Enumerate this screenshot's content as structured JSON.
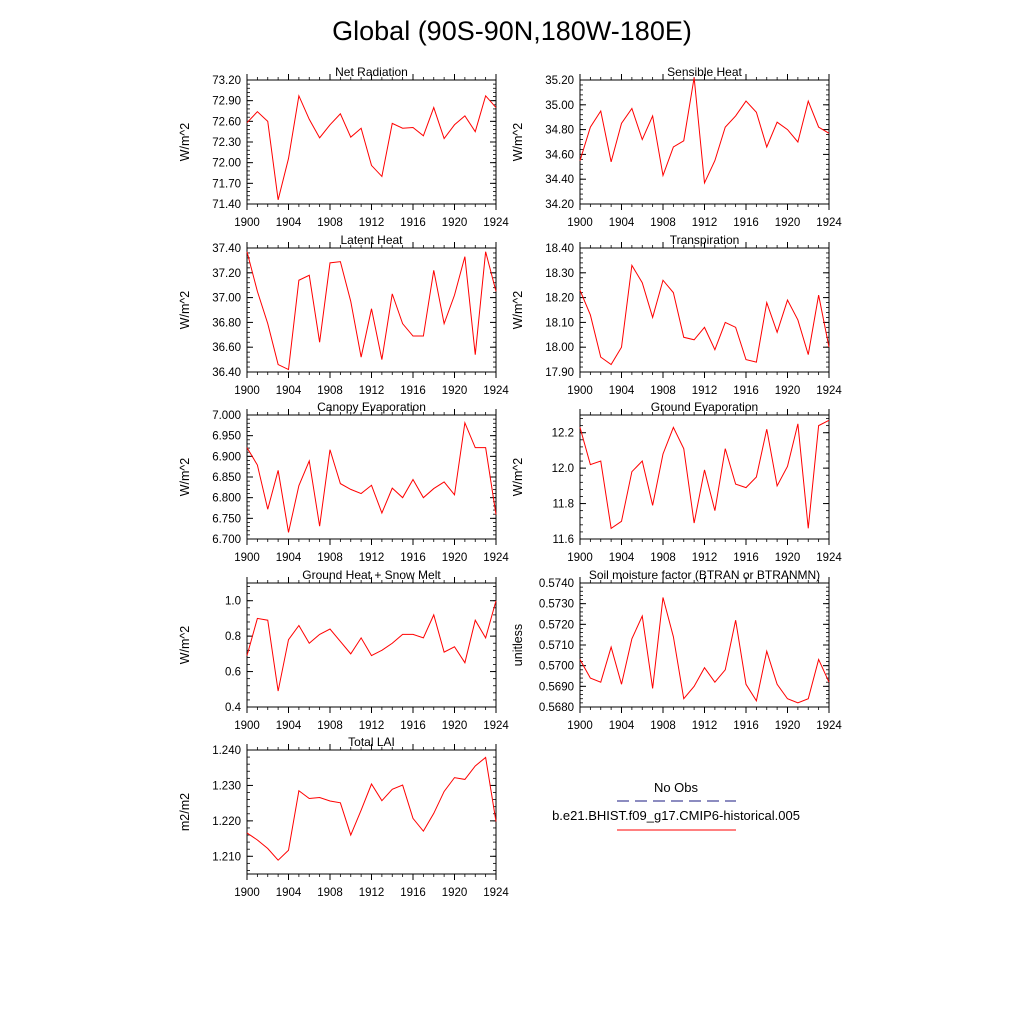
{
  "figure_title": "Global (90S-90N,180W-180E)",
  "colors": {
    "model": "#ff0000",
    "obs": "#1a1a80",
    "axes": "#000000"
  },
  "legend": {
    "entries": [
      {
        "label": "No Obs",
        "color": "#1a1a80",
        "style": "dashed"
      },
      {
        "label": "b.e21.BHIST.f09_g17.CMIP6-historical.005",
        "color": "#ff0000",
        "style": "solid"
      }
    ]
  },
  "chart_data": [
    {
      "type": "line",
      "title": "Net Radiation",
      "ylabel": "W/m^2",
      "xlabel": "",
      "xlim": [
        1900,
        1924
      ],
      "ylim": [
        71.4,
        73.2
      ],
      "xticks": [
        "1900",
        "1904",
        "1908",
        "1912",
        "1916",
        "1920",
        "1924"
      ],
      "yticks": [
        "71.40",
        "71.70",
        "72.00",
        "72.30",
        "72.60",
        "72.90",
        "73.20"
      ],
      "x": [
        1900,
        1901,
        1902,
        1903,
        1904,
        1905,
        1906,
        1907,
        1908,
        1909,
        1910,
        1911,
        1912,
        1913,
        1914,
        1915,
        1916,
        1917,
        1918,
        1919,
        1920,
        1921,
        1922,
        1923,
        1924
      ],
      "series": [
        {
          "values": [
            72.58,
            72.74,
            72.6,
            71.46,
            72.06,
            72.97,
            72.63,
            72.36,
            72.55,
            72.71,
            72.37,
            72.5,
            71.96,
            71.8,
            72.57,
            72.5,
            72.51,
            72.39,
            72.8,
            72.35,
            72.55,
            72.68,
            72.45,
            72.97,
            72.8
          ]
        }
      ]
    },
    {
      "type": "line",
      "title": "Sensible Heat",
      "ylabel": "W/m^2",
      "xlabel": "",
      "xlim": [
        1900,
        1924
      ],
      "ylim": [
        34.2,
        35.2
      ],
      "xticks": [
        "1900",
        "1904",
        "1908",
        "1912",
        "1916",
        "1920",
        "1924"
      ],
      "yticks": [
        "34.20",
        "34.40",
        "34.60",
        "34.80",
        "35.00",
        "35.20"
      ],
      "x": [
        1900,
        1901,
        1902,
        1903,
        1904,
        1905,
        1906,
        1907,
        1908,
        1909,
        1910,
        1911,
        1912,
        1913,
        1914,
        1915,
        1916,
        1917,
        1918,
        1919,
        1920,
        1921,
        1922,
        1923,
        1924
      ],
      "series": [
        {
          "values": [
            34.55,
            34.82,
            34.95,
            34.54,
            34.85,
            34.97,
            34.72,
            34.91,
            34.43,
            34.66,
            34.71,
            35.22,
            34.37,
            34.55,
            34.82,
            34.91,
            35.03,
            34.94,
            34.66,
            34.86,
            34.8,
            34.7,
            35.03,
            34.82,
            34.77
          ]
        }
      ]
    },
    {
      "type": "line",
      "title": "Latent Heat",
      "ylabel": "W/m^2",
      "xlabel": "",
      "xlim": [
        1900,
        1924
      ],
      "ylim": [
        36.4,
        37.4
      ],
      "xticks": [
        "1900",
        "1904",
        "1908",
        "1912",
        "1916",
        "1920",
        "1924"
      ],
      "yticks": [
        "36.40",
        "36.60",
        "36.80",
        "37.00",
        "37.20",
        "37.40"
      ],
      "x": [
        1900,
        1901,
        1902,
        1903,
        1904,
        1905,
        1906,
        1907,
        1908,
        1909,
        1910,
        1911,
        1912,
        1913,
        1914,
        1915,
        1916,
        1917,
        1918,
        1919,
        1920,
        1921,
        1922,
        1923,
        1924
      ],
      "series": [
        {
          "values": [
            37.37,
            37.05,
            36.79,
            36.46,
            36.42,
            37.14,
            37.18,
            36.64,
            37.28,
            37.29,
            36.97,
            36.52,
            36.91,
            36.5,
            37.03,
            36.79,
            36.69,
            36.69,
            37.22,
            36.79,
            37.02,
            37.33,
            36.54,
            37.37,
            37.05
          ]
        }
      ]
    },
    {
      "type": "line",
      "title": "Transpiration",
      "ylabel": "W/m^2",
      "xlabel": "",
      "xlim": [
        1900,
        1924
      ],
      "ylim": [
        17.9,
        18.4
      ],
      "xticks": [
        "1900",
        "1904",
        "1908",
        "1912",
        "1916",
        "1920",
        "1924"
      ],
      "yticks": [
        "17.90",
        "18.00",
        "18.10",
        "18.20",
        "18.30",
        "18.40"
      ],
      "x": [
        1900,
        1901,
        1902,
        1903,
        1904,
        1905,
        1906,
        1907,
        1908,
        1909,
        1910,
        1911,
        1912,
        1913,
        1914,
        1915,
        1916,
        1917,
        1918,
        1919,
        1920,
        1921,
        1922,
        1923,
        1924
      ],
      "series": [
        {
          "values": [
            18.23,
            18.13,
            17.96,
            17.93,
            18.0,
            18.33,
            18.26,
            18.12,
            18.27,
            18.22,
            18.04,
            18.03,
            18.08,
            17.99,
            18.1,
            18.08,
            17.95,
            17.94,
            18.18,
            18.06,
            18.19,
            18.11,
            17.97,
            18.21,
            18.0
          ]
        }
      ]
    },
    {
      "type": "line",
      "title": "Canopy Evaporation",
      "ylabel": "W/m^2",
      "xlabel": "",
      "xlim": [
        1900,
        1924
      ],
      "ylim": [
        6.7,
        7.0
      ],
      "xticks": [
        "1900",
        "1904",
        "1908",
        "1912",
        "1916",
        "1920",
        "1924"
      ],
      "yticks": [
        "6.700",
        "6.750",
        "6.800",
        "6.850",
        "6.900",
        "6.950",
        "7.000"
      ],
      "x": [
        1900,
        1901,
        1902,
        1903,
        1904,
        1905,
        1906,
        1907,
        1908,
        1909,
        1910,
        1911,
        1912,
        1913,
        1914,
        1915,
        1916,
        1917,
        1918,
        1919,
        1920,
        1921,
        1922,
        1923,
        1924
      ],
      "series": [
        {
          "values": [
            6.921,
            6.879,
            6.772,
            6.866,
            6.716,
            6.829,
            6.889,
            6.731,
            6.916,
            6.834,
            6.82,
            6.81,
            6.83,
            6.763,
            6.823,
            6.8,
            6.844,
            6.8,
            6.822,
            6.838,
            6.807,
            6.981,
            6.921,
            6.921,
            6.759
          ]
        }
      ]
    },
    {
      "type": "line",
      "title": "Ground Evaporation",
      "ylabel": "W/m^2",
      "xlabel": "",
      "xlim": [
        1900,
        1924
      ],
      "ylim": [
        11.6,
        12.3
      ],
      "xticks": [
        "1900",
        "1904",
        "1908",
        "1912",
        "1916",
        "1920",
        "1924"
      ],
      "yticks": [
        "11.6",
        "11.8",
        "12.0",
        "12.2"
      ],
      "x": [
        1900,
        1901,
        1902,
        1903,
        1904,
        1905,
        1906,
        1907,
        1908,
        1909,
        1910,
        1911,
        1912,
        1913,
        1914,
        1915,
        1916,
        1917,
        1918,
        1919,
        1920,
        1921,
        1922,
        1923,
        1924
      ],
      "series": [
        {
          "values": [
            12.23,
            12.02,
            12.04,
            11.66,
            11.7,
            11.98,
            12.04,
            11.79,
            12.08,
            12.23,
            12.11,
            11.69,
            11.99,
            11.76,
            12.11,
            11.91,
            11.89,
            11.95,
            12.22,
            11.9,
            12.01,
            12.25,
            11.66,
            12.24,
            12.27
          ]
        }
      ]
    },
    {
      "type": "line",
      "title": "Ground Heat + Snow Melt",
      "ylabel": "W/m^2",
      "xlabel": "",
      "xlim": [
        1900,
        1924
      ],
      "ylim": [
        0.4,
        1.1
      ],
      "xticks": [
        "1900",
        "1904",
        "1908",
        "1912",
        "1916",
        "1920",
        "1924"
      ],
      "yticks": [
        "0.4",
        "0.6",
        "0.8",
        "1.0"
      ],
      "x": [
        1900,
        1901,
        1902,
        1903,
        1904,
        1905,
        1906,
        1907,
        1908,
        1909,
        1910,
        1911,
        1912,
        1913,
        1914,
        1915,
        1916,
        1917,
        1918,
        1919,
        1920,
        1921,
        1922,
        1923,
        1924
      ],
      "series": [
        {
          "values": [
            0.69,
            0.9,
            0.89,
            0.49,
            0.78,
            0.86,
            0.76,
            0.81,
            0.84,
            0.77,
            0.7,
            0.79,
            0.69,
            0.72,
            0.76,
            0.81,
            0.81,
            0.79,
            0.92,
            0.71,
            0.74,
            0.65,
            0.89,
            0.79,
            1.0
          ]
        }
      ]
    },
    {
      "type": "line",
      "title": "Soil moisture factor (BTRAN or BTRANMN)",
      "ylabel": "unitless",
      "xlabel": "",
      "xlim": [
        1900,
        1924
      ],
      "ylim": [
        0.568,
        0.574
      ],
      "xticks": [
        "1900",
        "1904",
        "1908",
        "1912",
        "1916",
        "1920",
        "1924"
      ],
      "yticks": [
        "0.5680",
        "0.5690",
        "0.5700",
        "0.5710",
        "0.5720",
        "0.5730",
        "0.5740"
      ],
      "x": [
        1900,
        1901,
        1902,
        1903,
        1904,
        1905,
        1906,
        1907,
        1908,
        1909,
        1910,
        1911,
        1912,
        1913,
        1914,
        1915,
        1916,
        1917,
        1918,
        1919,
        1920,
        1921,
        1922,
        1923,
        1924
      ],
      "series": [
        {
          "values": [
            0.5703,
            0.5694,
            0.5692,
            0.5709,
            0.5691,
            0.5713,
            0.5724,
            0.5689,
            0.5733,
            0.5714,
            0.5684,
            0.569,
            0.5699,
            0.5692,
            0.5698,
            0.5722,
            0.5691,
            0.5683,
            0.5707,
            0.5691,
            0.5684,
            0.5682,
            0.5684,
            0.5703,
            0.5692
          ]
        }
      ]
    },
    {
      "type": "line",
      "title": "Total LAI",
      "ylabel": "m2/m2",
      "xlabel": "",
      "xlim": [
        1900,
        1924
      ],
      "ylim": [
        1.205,
        1.24
      ],
      "xticks": [
        "1900",
        "1904",
        "1908",
        "1912",
        "1916",
        "1920",
        "1924"
      ],
      "yticks": [
        "1.210",
        "1.220",
        "1.230",
        "1.240"
      ],
      "x": [
        1900,
        1901,
        1902,
        1903,
        1904,
        1905,
        1906,
        1907,
        1908,
        1909,
        1910,
        1911,
        1912,
        1913,
        1914,
        1915,
        1916,
        1917,
        1918,
        1919,
        1920,
        1921,
        1922,
        1923,
        1924
      ],
      "series": [
        {
          "values": [
            1.2166,
            1.2146,
            1.2122,
            1.2089,
            1.2117,
            1.2285,
            1.2263,
            1.2266,
            1.2256,
            1.2251,
            1.216,
            1.223,
            1.2304,
            1.2257,
            1.2289,
            1.2301,
            1.2207,
            1.2171,
            1.2221,
            1.2283,
            1.2322,
            1.2317,
            1.2355,
            1.2379,
            1.2198
          ]
        }
      ]
    }
  ]
}
